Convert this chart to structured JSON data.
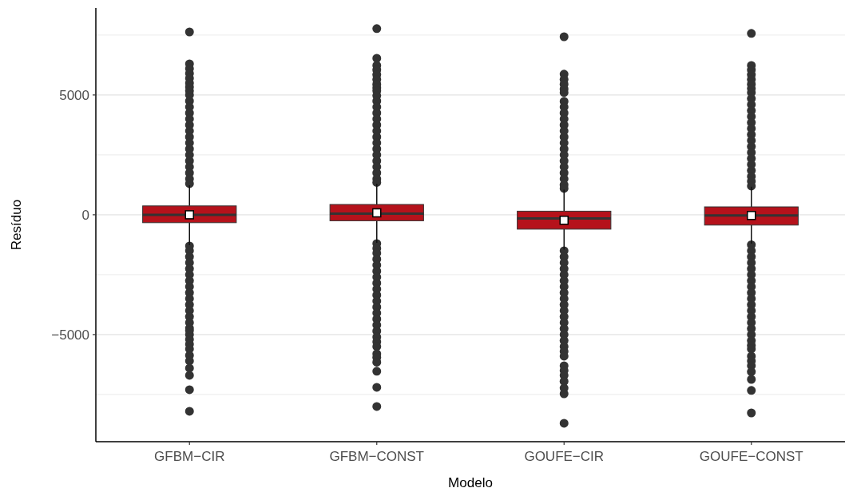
{
  "chart_data": {
    "type": "box",
    "xlabel": "Modelo",
    "ylabel": "Resíduo",
    "categories": [
      "GFBM−CIR",
      "GFBM−CONST",
      "GOUFE−CIR",
      "GOUFE−CONST"
    ],
    "color": "#b5121b",
    "ylim": [
      -9470,
      8630
    ],
    "yticks": [
      {
        "value": -7500,
        "label": null
      },
      -5000,
      {
        "value": -2500,
        "label": null
      },
      0,
      {
        "value": 2500,
        "label": null
      },
      5000,
      {
        "value": 7500,
        "label": null
      }
    ],
    "grid": "y",
    "boxes": [
      {
        "low": -1270,
        "q1": -330,
        "median": 0,
        "q3": 370,
        "high": 1230,
        "mean": 0,
        "outliers": [
          7630,
          6300,
          6100,
          5900,
          5700,
          5500,
          5330,
          5170,
          5000,
          4750,
          4500,
          4250,
          4000,
          3750,
          3500,
          3250,
          3000,
          2750,
          2500,
          2250,
          2000,
          1750,
          1500,
          1300,
          -1300,
          -1500,
          -1750,
          -2000,
          -2250,
          -2500,
          -2750,
          -3000,
          -3250,
          -3500,
          -3750,
          -4000,
          -4250,
          -4500,
          -4730,
          -4830,
          -5000,
          -5200,
          -5400,
          -5600,
          -5870,
          -6100,
          -6400,
          -6700,
          -7300,
          -8200
        ]
      },
      {
        "low": -1170,
        "q1": -250,
        "median": 50,
        "q3": 430,
        "high": 1300,
        "mean": 80,
        "outliers": [
          7770,
          6530,
          6230,
          6050,
          5850,
          5650,
          5450,
          5300,
          5170,
          4970,
          4750,
          4500,
          4250,
          4000,
          3750,
          3500,
          3250,
          3000,
          2750,
          2500,
          2250,
          2000,
          1750,
          1500,
          1350,
          -1200,
          -1400,
          -1600,
          -1850,
          -2100,
          -2350,
          -2600,
          -2850,
          -3100,
          -3350,
          -3600,
          -3850,
          -4100,
          -4350,
          -4600,
          -4850,
          -5100,
          -5300,
          -5500,
          -5800,
          -5950,
          -6150,
          -6530,
          -7200,
          -8000
        ]
      },
      {
        "low": -1450,
        "q1": -600,
        "median": -150,
        "q3": 150,
        "high": 1050,
        "mean": -230,
        "outliers": [
          7430,
          5870,
          5650,
          5450,
          5250,
          5100,
          4730,
          4500,
          4250,
          4000,
          3750,
          3500,
          3250,
          3000,
          2750,
          2500,
          2250,
          2000,
          1750,
          1500,
          1250,
          1100,
          -1500,
          -1750,
          -2000,
          -2250,
          -2500,
          -2750,
          -3000,
          -3250,
          -3500,
          -3750,
          -4000,
          -4250,
          -4500,
          -4750,
          -5000,
          -5250,
          -5500,
          -5700,
          -5900,
          -6300,
          -6500,
          -6700,
          -6950,
          -7230,
          -7470,
          -8700
        ]
      },
      {
        "low": -1200,
        "q1": -430,
        "median": -30,
        "q3": 330,
        "high": 1170,
        "mean": -30,
        "outliers": [
          7570,
          6230,
          6050,
          5850,
          5650,
          5450,
          5270,
          5100,
          4850,
          4600,
          4350,
          4100,
          3850,
          3600,
          3350,
          3100,
          2850,
          2600,
          2350,
          2100,
          1850,
          1600,
          1400,
          1200,
          -1250,
          -1500,
          -1750,
          -2000,
          -2250,
          -2500,
          -2750,
          -3000,
          -3250,
          -3500,
          -3750,
          -4000,
          -4250,
          -4500,
          -4750,
          -5000,
          -5250,
          -5450,
          -5600,
          -5900,
          -6100,
          -6300,
          -6550,
          -6870,
          -7330,
          -8270
        ]
      }
    ]
  }
}
